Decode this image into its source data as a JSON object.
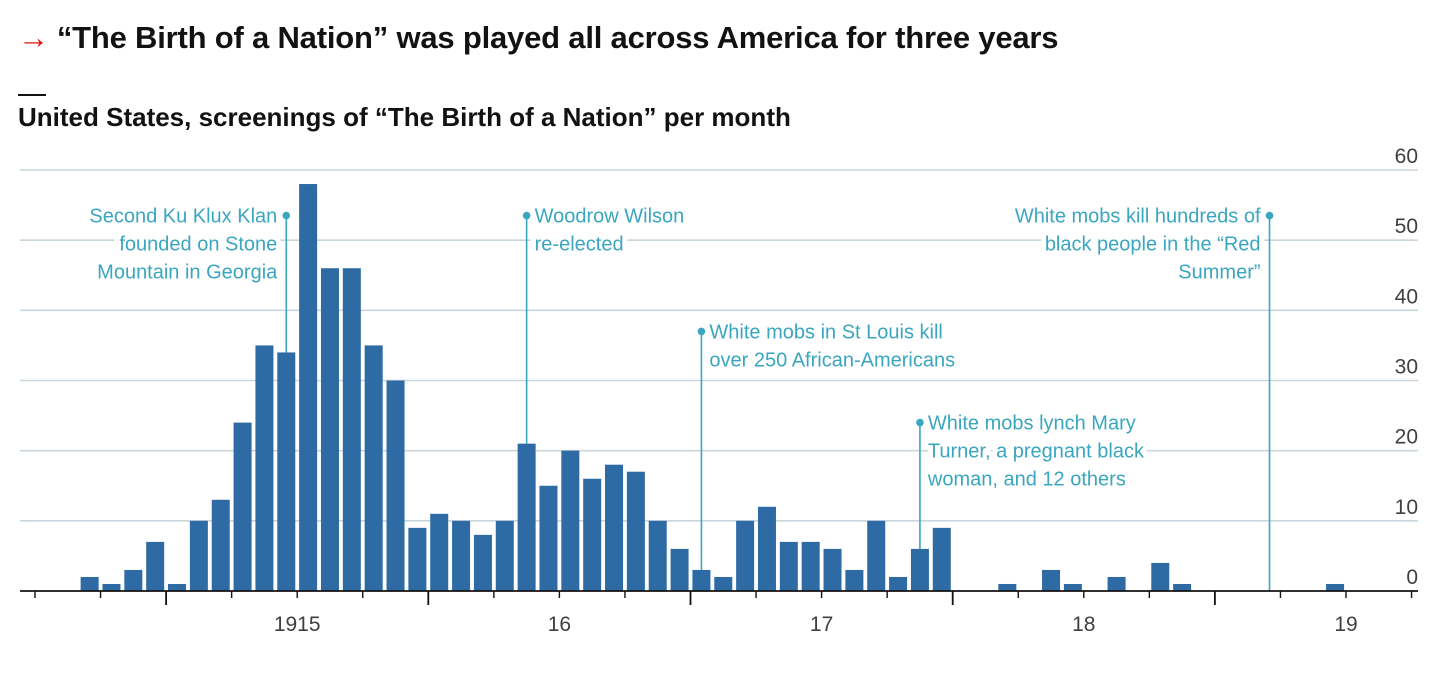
{
  "title": {
    "arrow": "→",
    "text": "“The Birth of a Nation” was played all across America for three years"
  },
  "subtitle": "United States, screenings of “The Birth of a Nation” per month",
  "colors": {
    "bar": "#2e6aa3",
    "annotation": "#3aa6bf",
    "grid": "#c9d5dc",
    "axis": "#121212",
    "accent": "#e3120b"
  },
  "chart_data": {
    "type": "bar",
    "title": "“The Birth of a Nation” was played all across America for three years",
    "subtitle": "United States, screenings of “The Birth of a Nation” per month",
    "xlabel": "",
    "ylabel": "",
    "ylim": [
      0,
      60
    ],
    "yticks": [
      0,
      10,
      20,
      30,
      40,
      50,
      60
    ],
    "y_axis_side": "right",
    "grid": true,
    "xaxis": {
      "start_month": "1914-07",
      "end_month": "1919-12",
      "year_labels": [
        {
          "label": "1915",
          "month": "1915-07"
        },
        {
          "label": "16",
          "month": "1916-07"
        },
        {
          "label": "17",
          "month": "1917-07"
        },
        {
          "label": "18",
          "month": "1918-07"
        },
        {
          "label": "19",
          "month": "1919-07"
        }
      ]
    },
    "bars": [
      {
        "month": "1914-09",
        "value": 2
      },
      {
        "month": "1914-10",
        "value": 1
      },
      {
        "month": "1914-11",
        "value": 3
      },
      {
        "month": "1914-12",
        "value": 7
      },
      {
        "month": "1915-01",
        "value": 1
      },
      {
        "month": "1915-02",
        "value": 10
      },
      {
        "month": "1915-03",
        "value": 13
      },
      {
        "month": "1915-04",
        "value": 24
      },
      {
        "month": "1915-05",
        "value": 35
      },
      {
        "month": "1915-06",
        "value": 34
      },
      {
        "month": "1915-07",
        "value": 58
      },
      {
        "month": "1915-08",
        "value": 46
      },
      {
        "month": "1915-09",
        "value": 46
      },
      {
        "month": "1915-10",
        "value": 35
      },
      {
        "month": "1915-11",
        "value": 30
      },
      {
        "month": "1915-12",
        "value": 9
      },
      {
        "month": "1916-01",
        "value": 11
      },
      {
        "month": "1916-02",
        "value": 10
      },
      {
        "month": "1916-03",
        "value": 8
      },
      {
        "month": "1916-04",
        "value": 10
      },
      {
        "month": "1916-05",
        "value": 21
      },
      {
        "month": "1916-06",
        "value": 15
      },
      {
        "month": "1916-07",
        "value": 20
      },
      {
        "month": "1916-08",
        "value": 16
      },
      {
        "month": "1916-09",
        "value": 18
      },
      {
        "month": "1916-10",
        "value": 17
      },
      {
        "month": "1916-11",
        "value": 10
      },
      {
        "month": "1916-12",
        "value": 6
      },
      {
        "month": "1917-01",
        "value": 3
      },
      {
        "month": "1917-02",
        "value": 2
      },
      {
        "month": "1917-03",
        "value": 10
      },
      {
        "month": "1917-04",
        "value": 12
      },
      {
        "month": "1917-05",
        "value": 7
      },
      {
        "month": "1917-06",
        "value": 7
      },
      {
        "month": "1917-07",
        "value": 6
      },
      {
        "month": "1917-08",
        "value": 3
      },
      {
        "month": "1917-09",
        "value": 10
      },
      {
        "month": "1917-10",
        "value": 2
      },
      {
        "month": "1917-11",
        "value": 6
      },
      {
        "month": "1917-12",
        "value": 9
      },
      {
        "month": "1918-03",
        "value": 1
      },
      {
        "month": "1918-05",
        "value": 3
      },
      {
        "month": "1918-06",
        "value": 1
      },
      {
        "month": "1918-08",
        "value": 2
      },
      {
        "month": "1918-10",
        "value": 4
      },
      {
        "month": "1918-11",
        "value": 1
      },
      {
        "month": "1919-06",
        "value": 1
      }
    ],
    "annotations": [
      {
        "lines": [
          "Second Ku Klux Klan",
          "founded on Stone",
          "Mountain in Georgia"
        ],
        "month": "1915-06",
        "anchor": "end",
        "marker_value": 53.5
      },
      {
        "lines": [
          "Woodrow Wilson",
          "re-elected"
        ],
        "month": "1916-05",
        "anchor": "start",
        "marker_value": 53.5
      },
      {
        "lines": [
          "White mobs in St Louis kill",
          "over 250 African-Americans"
        ],
        "month": "1917-01",
        "anchor": "start",
        "marker_value": 37
      },
      {
        "lines": [
          "White mobs lynch Mary",
          "Turner, a pregnant black",
          "woman, and 12 others"
        ],
        "month": "1917-11",
        "anchor": "start",
        "marker_value": 24
      },
      {
        "lines": [
          "White mobs kill hundreds of",
          "black people in the “Red",
          "Summer”"
        ],
        "month": "1919-03",
        "anchor": "end",
        "marker_value": 53.5
      }
    ]
  }
}
